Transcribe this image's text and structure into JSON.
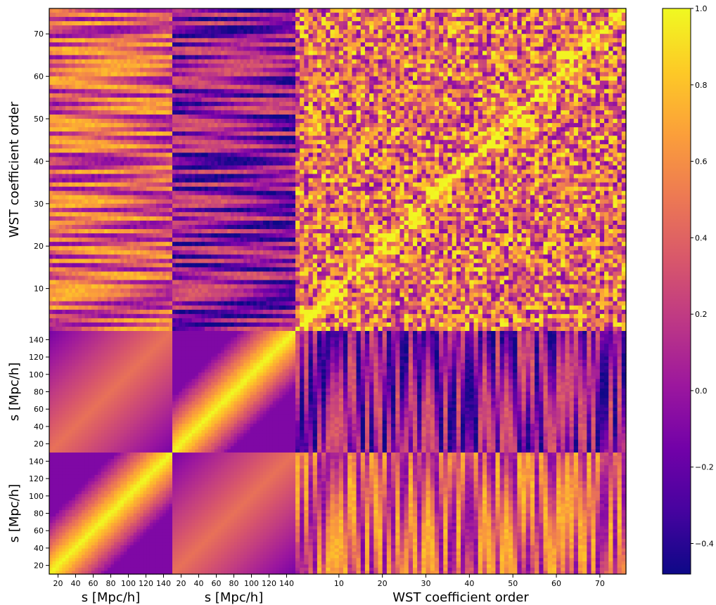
{
  "chart_data": {
    "type": "heatmap",
    "title": "",
    "colormap": "plasma",
    "colorbar": {
      "vmin": -0.48,
      "vmax": 1.0,
      "ticks": [
        {
          "value": 1.0,
          "label": "1.0"
        },
        {
          "value": 0.8,
          "label": "0.8"
        },
        {
          "value": 0.6,
          "label": "0.6"
        },
        {
          "value": 0.4,
          "label": "0.4"
        },
        {
          "value": 0.2,
          "label": "0.2"
        },
        {
          "value": 0.0,
          "label": "0.0"
        },
        {
          "value": -0.2,
          "label": "−0.2"
        },
        {
          "value": -0.4,
          "label": "−0.4"
        }
      ],
      "colors": [
        "#0d0887",
        "#46039f",
        "#7201a8",
        "#9c179e",
        "#bd3786",
        "#d8576b",
        "#ed7953",
        "#fb9f3a",
        "#fdca26",
        "#f0f921"
      ]
    },
    "blocks": {
      "x": [
        {
          "key": "xi0",
          "bins": 38,
          "label": "s [Mpc/h]",
          "ticks": [
            20,
            40,
            60,
            80,
            100,
            120,
            140
          ]
        },
        {
          "key": "xi2",
          "bins": 38,
          "label": "s [Mpc/h]",
          "ticks": [
            20,
            40,
            60,
            80,
            100,
            120,
            140
          ]
        },
        {
          "key": "wst",
          "bins": 76,
          "label": "WST coefficient order",
          "ticks": [
            10,
            20,
            30,
            40,
            50,
            60,
            70
          ]
        }
      ],
      "y_top_to_bottom": [
        {
          "key": "wst",
          "bins": 76,
          "label": "WST coefficient order",
          "ticks": [
            10,
            20,
            30,
            40,
            50,
            60,
            70
          ]
        },
        {
          "key": "xi2",
          "bins": 38,
          "label": "s [Mpc/h]",
          "ticks": [
            20,
            40,
            60,
            80,
            100,
            120,
            140
          ]
        },
        {
          "key": "xi0",
          "bins": 38,
          "label": "s [Mpc/h]",
          "ticks": [
            20,
            40,
            60,
            80,
            100,
            120,
            140
          ]
        }
      ]
    },
    "s_range": [
      10,
      150
    ],
    "wst_range": [
      0,
      76
    ],
    "diagonal_value": 1.0,
    "block_levels": {
      "xi0_xi0": 0.1,
      "xi2_xi2": 0.15,
      "xi0_xi2": 0.12,
      "xi0_wst": 0.35,
      "xi2_wst": -0.05,
      "wst_wst": 0.45
    },
    "grid": false,
    "legend": "none"
  }
}
